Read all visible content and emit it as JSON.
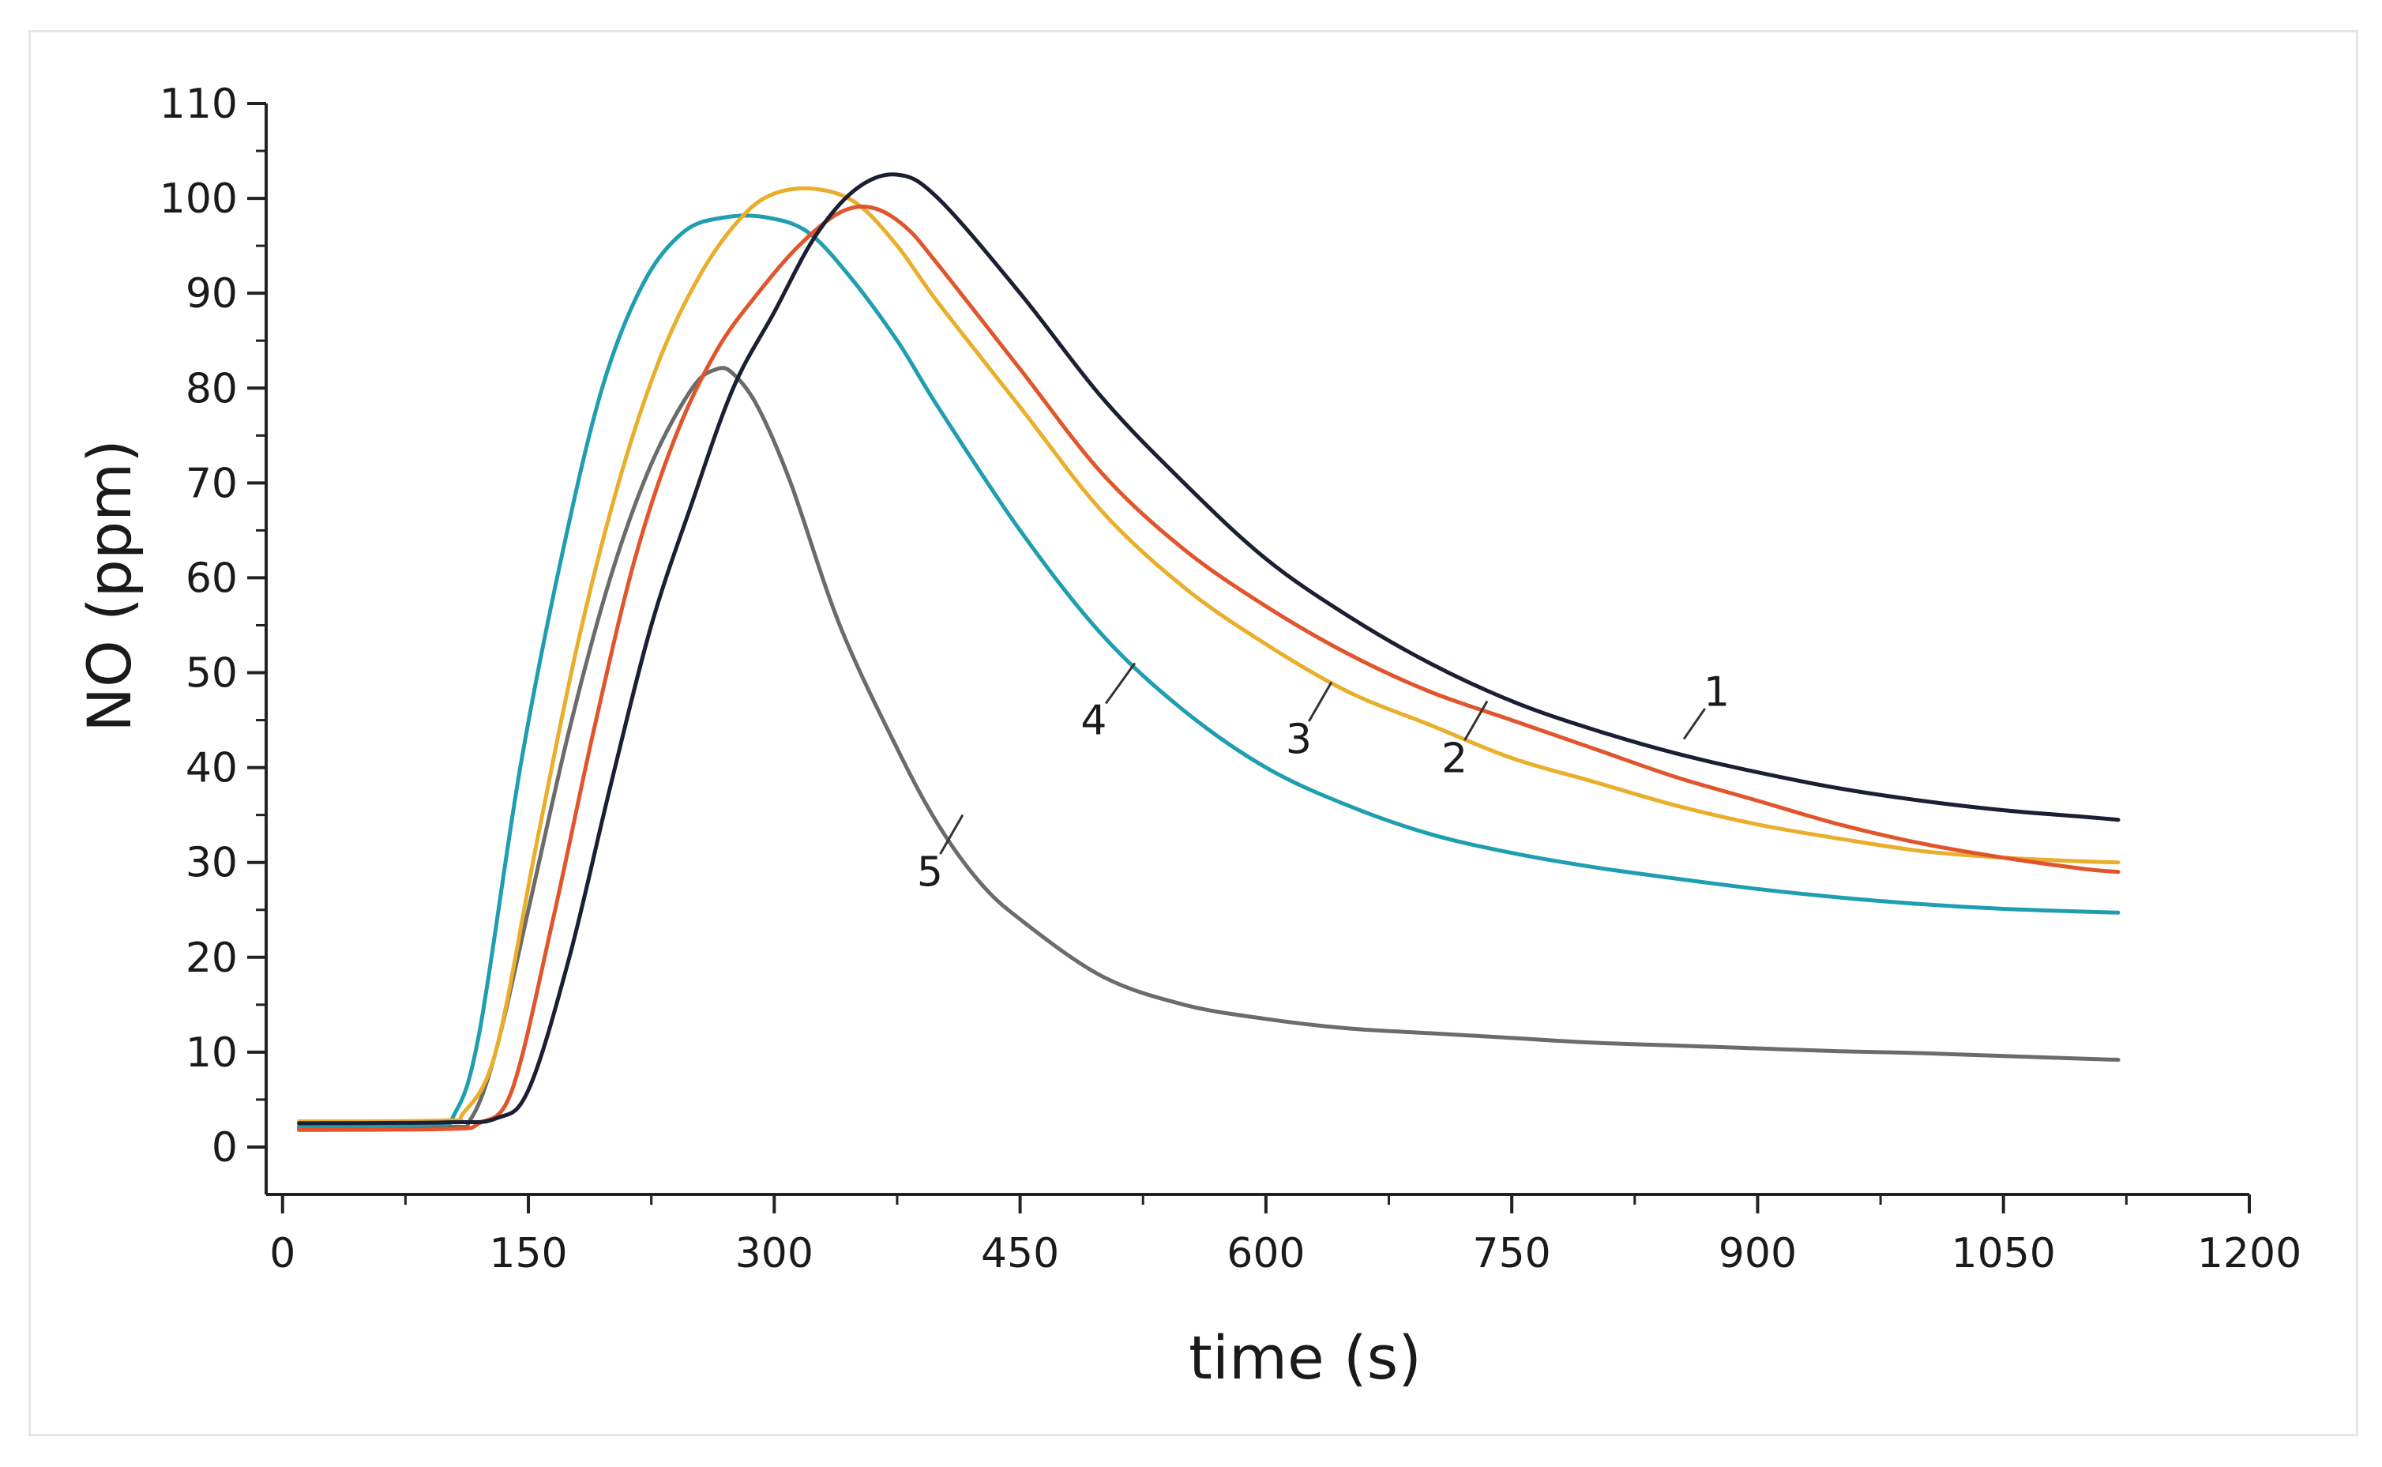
{
  "chart_data": {
    "type": "line",
    "title": "",
    "xlabel": "time (s)",
    "ylabel": "NO (ppm)",
    "xlim": [
      -10,
      1200
    ],
    "ylim": [
      -5,
      110
    ],
    "xticks": [
      0,
      150,
      300,
      450,
      600,
      750,
      900,
      1050,
      1200
    ],
    "yticks": [
      0,
      10,
      20,
      30,
      40,
      50,
      60,
      70,
      80,
      90,
      100,
      110
    ],
    "xtick_labels": [
      "0",
      "150",
      "300",
      "450",
      "600",
      "750",
      "900",
      "1050",
      "1200"
    ],
    "ytick_labels": [
      "0",
      "10",
      "20",
      "30",
      "40",
      "50",
      "60",
      "70",
      "80",
      "90",
      "100",
      "110"
    ],
    "grid": false,
    "series": [
      {
        "name": "1",
        "color": "#1a1f33",
        "x": [
          10,
          100,
          130,
          150,
          175,
          200,
          225,
          250,
          275,
          300,
          325,
          350,
          375,
          400,
          450,
          500,
          550,
          600,
          650,
          700,
          750,
          800,
          850,
          900,
          950,
          1000,
          1050,
          1100,
          1120
        ],
        "y": [
          2.5,
          2.6,
          3,
          6,
          20,
          38,
          55,
          68,
          80,
          88,
          96,
          101,
          102.5,
          100,
          90,
          79,
          70,
          62,
          56,
          51,
          47,
          44,
          41.5,
          39.5,
          37.8,
          36.5,
          35.5,
          34.8,
          34.5
        ],
        "label_at": {
          "x": 855,
          "y": 43
        },
        "label_text_at": {
          "x": 875,
          "y": 48
        }
      },
      {
        "name": "2",
        "color": "#e0552c",
        "x": [
          10,
          100,
          120,
          140,
          165,
          190,
          215,
          240,
          265,
          290,
          315,
          340,
          360,
          380,
          400,
          450,
          500,
          550,
          600,
          650,
          700,
          750,
          800,
          850,
          900,
          950,
          1000,
          1050,
          1100,
          1120
        ],
        "y": [
          1.8,
          1.9,
          2.5,
          6,
          24,
          44,
          62,
          75,
          84,
          90,
          95,
          98.5,
          99,
          97,
          93,
          82,
          71,
          63,
          57,
          52,
          48,
          45,
          42,
          39,
          36.5,
          34,
          32,
          30.5,
          29.3,
          29
        ],
        "label_at": {
          "x": 735,
          "y": 47
        },
        "label_text_at": {
          "x": 715,
          "y": 41
        }
      },
      {
        "name": "3",
        "color": "#e9ae2a",
        "x": [
          10,
          100,
          110,
          130,
          155,
          180,
          205,
          230,
          255,
          280,
          300,
          325,
          350,
          375,
          400,
          450,
          500,
          550,
          600,
          650,
          700,
          750,
          800,
          850,
          900,
          950,
          1000,
          1050,
          1100,
          1120
        ],
        "y": [
          2.7,
          2.8,
          3.5,
          10,
          32,
          53,
          70,
          83,
          92,
          98,
          100.5,
          101,
          99.5,
          95,
          89,
          78,
          67,
          59,
          53,
          48,
          44.5,
          41,
          38.5,
          36,
          34,
          32.5,
          31.2,
          30.5,
          30.1,
          30
        ],
        "label_at": {
          "x": 640,
          "y": 49
        },
        "label_text_at": {
          "x": 620,
          "y": 43
        }
      },
      {
        "name": "4",
        "color": "#1e9eb0",
        "x": [
          10,
          90,
          105,
          120,
          145,
          170,
          195,
          220,
          245,
          270,
          295,
          320,
          345,
          375,
          400,
          450,
          500,
          550,
          600,
          650,
          700,
          750,
          800,
          850,
          900,
          950,
          1000,
          1050,
          1100,
          1120
        ],
        "y": [
          2.2,
          2.4,
          3.5,
          12,
          40,
          62,
          80,
          91,
          96.5,
          98,
          98,
          96.5,
          92,
          85,
          78,
          65,
          54,
          46,
          40,
          36,
          33,
          31,
          29.5,
          28.3,
          27.2,
          26.3,
          25.6,
          25.1,
          24.8,
          24.7
        ],
        "label_at": {
          "x": 520,
          "y": 51
        },
        "label_text_at": {
          "x": 495,
          "y": 45
        }
      },
      {
        "name": "5",
        "color": "#6b6b6b",
        "x": [
          10,
          100,
          115,
          130,
          150,
          175,
          200,
          225,
          250,
          265,
          275,
          290,
          310,
          340,
          375,
          400,
          425,
          450,
          500,
          550,
          600,
          650,
          700,
          750,
          800,
          850,
          900,
          950,
          1000,
          1050,
          1100,
          1120
        ],
        "y": [
          2,
          2.1,
          3,
          10,
          25,
          44,
          60,
          72,
          80,
          82,
          81.5,
          78,
          70,
          55,
          42,
          34,
          28,
          24,
          18,
          15,
          13.5,
          12.5,
          12,
          11.5,
          11,
          10.7,
          10.4,
          10.1,
          9.9,
          9.6,
          9.3,
          9.2
        ],
        "label_at": {
          "x": 415,
          "y": 35
        },
        "label_text_at": {
          "x": 395,
          "y": 29
        }
      }
    ]
  }
}
